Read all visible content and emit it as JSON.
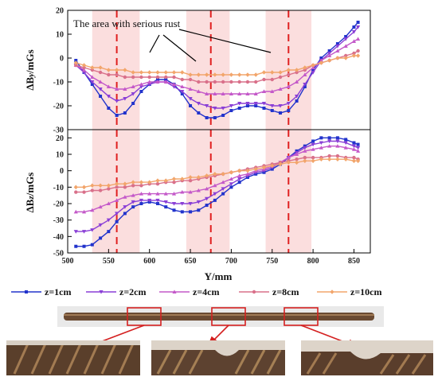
{
  "chart_data": [
    {
      "type": "line",
      "panel": "top",
      "ylabel_main": "ΔB",
      "ylabel_sub": "y",
      "ylabel_unit": "/mGs",
      "ylim": [
        -30,
        20
      ],
      "yticks": [
        -30,
        -20,
        -10,
        0,
        10,
        20
      ],
      "xlim": [
        500,
        870
      ],
      "annotation": "The area with serious rust",
      "series": [
        {
          "name": "z=1cm",
          "color": "#2233cc",
          "marker": "square",
          "x": [
            510,
            520,
            530,
            540,
            550,
            560,
            570,
            580,
            590,
            600,
            610,
            620,
            630,
            640,
            650,
            660,
            670,
            680,
            690,
            700,
            710,
            720,
            730,
            740,
            750,
            760,
            770,
            780,
            790,
            800,
            810,
            820,
            830,
            840,
            850,
            855
          ],
          "y": [
            -1,
            -6,
            -11,
            -16,
            -21,
            -24,
            -23,
            -19,
            -14,
            -11,
            -9,
            -9,
            -11,
            -15,
            -20,
            -23,
            -25,
            -25,
            -24,
            -22,
            -21,
            -20,
            -20,
            -21,
            -22,
            -23,
            -22,
            -18,
            -12,
            -5,
            0,
            3,
            6,
            9,
            13,
            15
          ]
        },
        {
          "name": "z=2cm",
          "color": "#8a3fd6",
          "marker": "triangle-down",
          "x": [
            510,
            520,
            530,
            540,
            550,
            560,
            570,
            580,
            590,
            600,
            610,
            620,
            630,
            640,
            650,
            660,
            670,
            680,
            690,
            700,
            710,
            720,
            730,
            740,
            750,
            760,
            770,
            780,
            790,
            800,
            810,
            820,
            830,
            840,
            850,
            855
          ],
          "y": [
            -3,
            -6,
            -10,
            -13,
            -16,
            -18,
            -17,
            -15,
            -12,
            -11,
            -10,
            -10,
            -12,
            -14,
            -17,
            -19,
            -20,
            -21,
            -21,
            -20,
            -19,
            -19,
            -19,
            -19,
            -20,
            -20,
            -19,
            -16,
            -11,
            -6,
            -1,
            2,
            5,
            8,
            11,
            13
          ]
        },
        {
          "name": "z=4cm",
          "color": "#c459c9",
          "marker": "triangle-up",
          "x": [
            510,
            520,
            530,
            540,
            550,
            560,
            570,
            580,
            590,
            600,
            610,
            620,
            630,
            640,
            650,
            660,
            670,
            680,
            690,
            700,
            710,
            720,
            730,
            740,
            750,
            760,
            770,
            780,
            790,
            800,
            810,
            820,
            830,
            840,
            850,
            855
          ],
          "y": [
            -3,
            -5,
            -8,
            -10,
            -12,
            -13,
            -13,
            -12,
            -11,
            -10,
            -10,
            -10,
            -11,
            -12,
            -13,
            -14,
            -15,
            -15,
            -15,
            -15,
            -15,
            -15,
            -15,
            -14,
            -14,
            -13,
            -12,
            -10,
            -7,
            -4,
            -1,
            1,
            3,
            5,
            7,
            8
          ]
        },
        {
          "name": "z=8cm",
          "color": "#d9708a",
          "marker": "circle",
          "x": [
            510,
            520,
            530,
            540,
            550,
            560,
            570,
            580,
            590,
            600,
            610,
            620,
            630,
            640,
            650,
            660,
            670,
            680,
            690,
            700,
            710,
            720,
            730,
            740,
            750,
            760,
            770,
            780,
            790,
            800,
            810,
            820,
            830,
            840,
            850,
            855
          ],
          "y": [
            -3,
            -4,
            -5,
            -6,
            -7,
            -7,
            -8,
            -8,
            -8,
            -8,
            -8,
            -8,
            -8,
            -9,
            -9,
            -10,
            -10,
            -10,
            -10,
            -10,
            -10,
            -10,
            -10,
            -9,
            -9,
            -8,
            -7,
            -6,
            -5,
            -3,
            -2,
            -1,
            0,
            1,
            2,
            3
          ]
        },
        {
          "name": "z=10cm",
          "color": "#f2a56b",
          "marker": "diamond",
          "x": [
            510,
            520,
            530,
            540,
            550,
            560,
            570,
            580,
            590,
            600,
            610,
            620,
            630,
            640,
            650,
            660,
            670,
            680,
            690,
            700,
            710,
            720,
            730,
            740,
            750,
            760,
            770,
            780,
            790,
            800,
            810,
            820,
            830,
            840,
            850,
            855
          ],
          "y": [
            -2,
            -3,
            -4,
            -4,
            -5,
            -5,
            -5,
            -6,
            -6,
            -6,
            -6,
            -6,
            -6,
            -6,
            -7,
            -7,
            -7,
            -7,
            -7,
            -7,
            -7,
            -7,
            -7,
            -6,
            -6,
            -6,
            -5,
            -5,
            -4,
            -3,
            -2,
            -1,
            0,
            0,
            1,
            1
          ]
        }
      ]
    },
    {
      "type": "line",
      "panel": "bottom",
      "ylabel_main": "ΔB",
      "ylabel_sub": "z",
      "ylabel_unit": "/mGs",
      "ylim": [
        -50,
        25
      ],
      "yticks": [
        -50,
        -40,
        -30,
        -20,
        -10,
        0,
        10,
        20
      ],
      "xlabel": "Y/mm",
      "xlim": [
        500,
        870
      ],
      "xticks": [
        500,
        550,
        600,
        650,
        700,
        750,
        800,
        850
      ],
      "series": [
        {
          "name": "z=1cm",
          "color": "#2233cc",
          "marker": "square",
          "x": [
            510,
            520,
            530,
            540,
            550,
            560,
            570,
            580,
            590,
            600,
            610,
            620,
            630,
            640,
            650,
            660,
            670,
            680,
            690,
            700,
            710,
            720,
            730,
            740,
            750,
            760,
            770,
            780,
            790,
            800,
            810,
            820,
            830,
            840,
            850,
            855
          ],
          "y": [
            -46,
            -46,
            -45,
            -41,
            -37,
            -31,
            -26,
            -22,
            -20,
            -19,
            -20,
            -22,
            -24,
            -25,
            -25,
            -24,
            -21,
            -18,
            -14,
            -10,
            -7,
            -4,
            -2,
            -1,
            1,
            4,
            8,
            12,
            15,
            18,
            20,
            20,
            20,
            19,
            17,
            16
          ]
        },
        {
          "name": "z=2cm",
          "color": "#8a3fd6",
          "marker": "triangle-down",
          "x": [
            510,
            520,
            530,
            540,
            550,
            560,
            570,
            580,
            590,
            600,
            610,
            620,
            630,
            640,
            650,
            660,
            670,
            680,
            690,
            700,
            710,
            720,
            730,
            740,
            750,
            760,
            770,
            780,
            790,
            800,
            810,
            820,
            830,
            840,
            850,
            855
          ],
          "y": [
            -37,
            -37,
            -36,
            -33,
            -30,
            -26,
            -22,
            -19,
            -18,
            -18,
            -18,
            -19,
            -20,
            -20,
            -20,
            -19,
            -17,
            -14,
            -11,
            -8,
            -5,
            -3,
            -1,
            0,
            2,
            5,
            8,
            11,
            14,
            16,
            17,
            18,
            18,
            17,
            15,
            14
          ]
        },
        {
          "name": "z=4cm",
          "color": "#c459c9",
          "marker": "triangle-up",
          "x": [
            510,
            520,
            530,
            540,
            550,
            560,
            570,
            580,
            590,
            600,
            610,
            620,
            630,
            640,
            650,
            660,
            670,
            680,
            690,
            700,
            710,
            720,
            730,
            740,
            750,
            760,
            770,
            780,
            790,
            800,
            810,
            820,
            830,
            840,
            850,
            855
          ],
          "y": [
            -25,
            -25,
            -24,
            -22,
            -20,
            -18,
            -16,
            -15,
            -14,
            -14,
            -14,
            -14,
            -14,
            -13,
            -13,
            -12,
            -11,
            -9,
            -7,
            -5,
            -3,
            -2,
            0,
            1,
            3,
            5,
            8,
            10,
            12,
            13,
            14,
            15,
            15,
            14,
            13,
            12
          ]
        },
        {
          "name": "z=8cm",
          "color": "#d9708a",
          "marker": "circle",
          "x": [
            510,
            520,
            530,
            540,
            550,
            560,
            570,
            580,
            590,
            600,
            610,
            620,
            630,
            640,
            650,
            660,
            670,
            680,
            690,
            700,
            710,
            720,
            730,
            740,
            750,
            760,
            770,
            780,
            790,
            800,
            810,
            820,
            830,
            840,
            850,
            855
          ],
          "y": [
            -13,
            -13,
            -12,
            -12,
            -11,
            -10,
            -10,
            -9,
            -9,
            -8,
            -8,
            -7,
            -7,
            -6,
            -6,
            -5,
            -4,
            -3,
            -2,
            -1,
            0,
            1,
            2,
            3,
            4,
            5,
            6,
            7,
            8,
            8,
            8,
            9,
            9,
            8,
            8,
            7
          ]
        },
        {
          "name": "z=10cm",
          "color": "#f2a56b",
          "marker": "diamond",
          "x": [
            510,
            520,
            530,
            540,
            550,
            560,
            570,
            580,
            590,
            600,
            610,
            620,
            630,
            640,
            650,
            660,
            670,
            680,
            690,
            700,
            710,
            720,
            730,
            740,
            750,
            760,
            770,
            780,
            790,
            800,
            810,
            820,
            830,
            840,
            850,
            855
          ],
          "y": [
            -10,
            -10,
            -9,
            -9,
            -9,
            -8,
            -8,
            -7,
            -7,
            -7,
            -6,
            -6,
            -5,
            -5,
            -4,
            -4,
            -3,
            -2,
            -2,
            -1,
            0,
            0,
            1,
            2,
            3,
            4,
            5,
            5,
            6,
            6,
            7,
            7,
            7,
            7,
            6,
            6
          ]
        }
      ]
    }
  ],
  "rust_bands": [
    [
      530,
      588
    ],
    [
      645,
      698
    ],
    [
      742,
      798
    ]
  ],
  "dashed_lines_x": [
    560,
    675,
    770
  ],
  "legend": [
    "z=1cm",
    "z=2cm",
    "z=4cm",
    "z=8cm",
    "z=10cm"
  ],
  "colors": {
    "rust_band": "#fbdede",
    "dashed_line": "#e02020",
    "callout": "#d42020"
  },
  "photos": [
    "rebar-full-view",
    "rust-closeup-1",
    "rust-closeup-2",
    "rust-closeup-3"
  ]
}
